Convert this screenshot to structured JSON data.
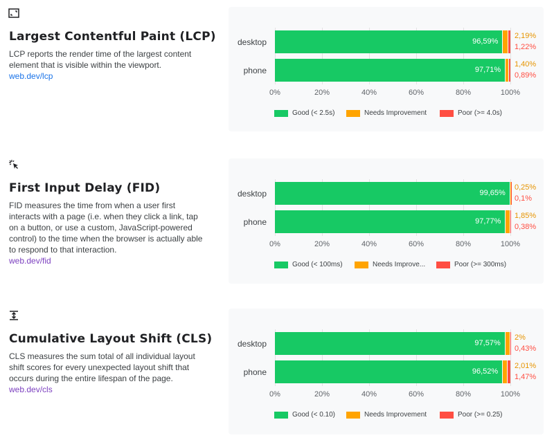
{
  "colors": {
    "good": "#17c964",
    "needs_improvement": "#ffa400",
    "poor": "#ff4e42",
    "good_label": "#ffffff"
  },
  "axis_ticks": [
    "0%",
    "20%",
    "40%",
    "60%",
    "80%",
    "100%"
  ],
  "sections": [
    {
      "icon": "expand-icon",
      "title": "Largest Contentful Paint (LCP)",
      "description": "LCP reports the render time of the largest content element that is visible within the viewport.",
      "link": "web.dev/lcp",
      "legend": [
        "Good (< 2.5s)",
        "Needs Improvement",
        "Poor (>= 4.0s)"
      ],
      "rows": [
        {
          "label": "desktop",
          "good": 96.59,
          "ni": 2.19,
          "poor": 1.22,
          "good_text": "96,59%",
          "ni_text": "2,19%",
          "poor_text": "1,22%"
        },
        {
          "label": "phone",
          "good": 97.71,
          "ni": 1.4,
          "poor": 0.89,
          "good_text": "97,71%",
          "ni_text": "1,40%",
          "poor_text": "0,89%"
        }
      ]
    },
    {
      "icon": "click-icon",
      "title": "First Input Delay (FID)",
      "description": "FID measures the time from when a user first interacts with a page (i.e. when they click a link, tap on a button, or use a custom, JavaScript-powered control) to the time when the browser is actually able to respond to that interaction.",
      "link": "web.dev/fid",
      "legend": [
        "Good (< 100ms)",
        "Needs Improve...",
        "Poor (>= 300ms)"
      ],
      "rows": [
        {
          "label": "desktop",
          "good": 99.65,
          "ni": 0.25,
          "poor": 0.1,
          "good_text": "99,65%",
          "ni_text": "0,25%",
          "poor_text": "0,1%"
        },
        {
          "label": "phone",
          "good": 97.77,
          "ni": 1.85,
          "poor": 0.38,
          "good_text": "97,77%",
          "ni_text": "1,85%",
          "poor_text": "0,38%"
        }
      ]
    },
    {
      "icon": "vertical-shift-icon",
      "title": "Cumulative Layout Shift (CLS)",
      "description": "CLS measures the sum total of all individual layout shift scores for every unexpected layout shift that occurs during the entire lifespan of the page.",
      "link": "web.dev/cls",
      "legend": [
        "Good (< 0.10)",
        "Needs Improvement",
        "Poor (>= 0.25)"
      ],
      "rows": [
        {
          "label": "desktop",
          "good": 97.57,
          "ni": 2.0,
          "poor": 0.43,
          "good_text": "97,57%",
          "ni_text": "2%",
          "poor_text": "0,43%"
        },
        {
          "label": "phone",
          "good": 96.52,
          "ni": 2.01,
          "poor": 1.47,
          "good_text": "96,52%",
          "ni_text": "2,01%",
          "poor_text": "1,47%"
        }
      ]
    }
  ]
}
